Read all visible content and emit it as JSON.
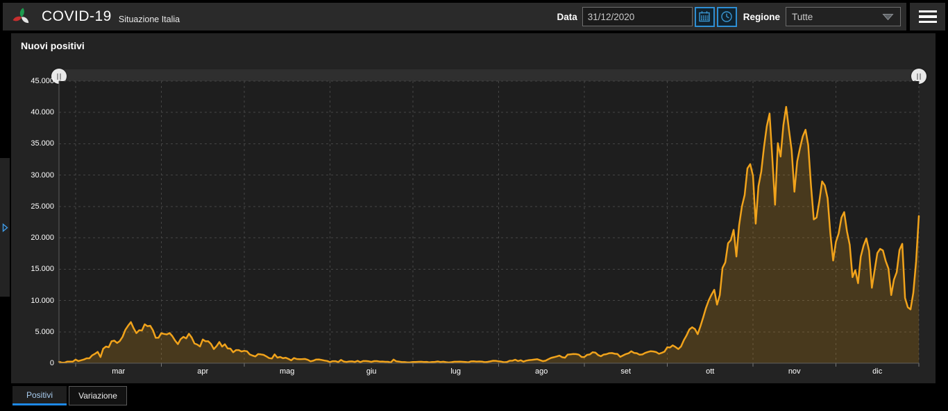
{
  "header": {
    "app_title": "COVID-19",
    "app_subtitle": "Situazione Italia",
    "date_label": "Data",
    "date_value": "31/12/2020",
    "region_label": "Regione",
    "region_value": "Tutte"
  },
  "panel": {
    "title": "Nuovi positivi"
  },
  "tabs": [
    {
      "label": "Positivi",
      "active": true
    },
    {
      "label": "Variazione",
      "active": false
    }
  ],
  "colors": {
    "line": "#f1a31b",
    "area_fill": "rgba(241,163,27,0.20)",
    "accent_blue": "#2e8fd4",
    "tab_underline": "#1e88e5"
  },
  "chart_data": {
    "type": "area",
    "title": "Nuovi positivi",
    "start_date": "2020-02-24",
    "ylim": [
      0,
      45000
    ],
    "y_ticks": [
      0,
      5000,
      10000,
      15000,
      20000,
      25000,
      30000,
      35000,
      40000,
      45000
    ],
    "y_tick_labels": [
      "0",
      "5.000",
      "10.000",
      "15.000",
      "20.000",
      "25.000",
      "30.000",
      "35.000",
      "40.000",
      "45.000"
    ],
    "x_tick_labels": [
      "mar",
      "apr",
      "mag",
      "giu",
      "lug",
      "ago",
      "set",
      "ott",
      "nov",
      "dic"
    ],
    "month_start_indices": [
      6,
      37,
      67,
      98,
      128,
      159,
      190,
      220,
      251,
      281
    ],
    "end_index": 311,
    "grid": true,
    "legend": "none",
    "values": [
      221,
      93,
      78,
      250,
      238,
      240,
      561,
      347,
      466,
      587,
      769,
      778,
      1247,
      1492,
      1797,
      977,
      2313,
      2651,
      2547,
      3497,
      3590,
      3233,
      3526,
      4207,
      5322,
      5986,
      6557,
      5560,
      4789,
      5249,
      5210,
      6203,
      5909,
      5974,
      5217,
      4050,
      4053,
      4782,
      4668,
      4585,
      4805,
      4316,
      3599,
      3039,
      3836,
      4204,
      3951,
      4694,
      4092,
      3153,
      2972,
      2667,
      3786,
      3493,
      3491,
      3047,
      2256,
      2729,
      3370,
      2646,
      3021,
      2357,
      2324,
      1739,
      2091,
      2086,
      1872,
      1965,
      1900,
      1389,
      1221,
      1075,
      1444,
      1401,
      1327,
      1083,
      802,
      744,
      1402,
      888,
      992,
      789,
      875,
      675,
      451,
      813,
      665,
      642,
      652,
      669,
      531,
      300,
      397,
      584,
      593,
      516,
      416,
      355,
      178,
      318,
      321,
      177,
      518,
      270,
      197,
      280,
      283,
      202,
      379,
      163,
      346,
      338,
      301,
      210,
      329,
      331,
      251,
      264,
      224,
      218,
      113,
      577,
      296,
      255,
      175,
      174,
      126,
      142,
      187,
      201,
      223,
      235,
      192,
      208,
      138,
      193,
      214,
      276,
      188,
      234,
      169,
      114,
      162,
      230,
      233,
      249,
      218,
      190,
      128,
      282,
      306,
      252,
      275,
      255,
      170,
      212,
      289,
      386,
      379,
      295,
      239,
      159,
      190,
      384,
      402,
      552,
      347,
      463,
      259,
      412,
      481,
      523,
      574,
      629,
      479,
      320,
      403,
      642,
      840,
      947,
      1071,
      1210,
      953,
      878,
      1367,
      1411,
      1462,
      1444,
      1365,
      996,
      978,
      1326,
      1397,
      1733,
      1694,
      1297,
      1108,
      1370,
      1434,
      1597,
      1616,
      1501,
      1458,
      1008,
      1229,
      1452,
      1585,
      1907,
      1638,
      1587,
      1350,
      1392,
      1640,
      1786,
      1912,
      1869,
      1766,
      1494,
      1648,
      1851,
      2548,
      2499,
      2844,
      2578,
      2257,
      2677,
      3678,
      4458,
      5372,
      5724,
      5456,
      4619,
      5901,
      7332,
      8804,
      10010,
      10925,
      11705,
      9338,
      10874,
      15199,
      16079,
      19143,
      19644,
      21273,
      17012,
      21994,
      24991,
      26831,
      31084,
      31758,
      29907,
      22253,
      28244,
      30550,
      34505,
      37809,
      39811,
      32616,
      25271,
      35098,
      32961,
      37978,
      40902,
      37255,
      33979,
      27354,
      32191,
      34283,
      36176,
      37242,
      34767,
      28337,
      22930,
      23232,
      25853,
      29003,
      28352,
      26323,
      20648,
      16377,
      19350,
      20709,
      23225,
      24099,
      21052,
      18887,
      13720,
      14842,
      12756,
      16999,
      18727,
      19903,
      17938,
      12030,
      14844,
      17572,
      18236,
      17992,
      16308,
      15104,
      10872,
      13318,
      14522,
      18040,
      19037,
      10407,
      8913,
      8585,
      11212,
      16202,
      23477
    ]
  }
}
